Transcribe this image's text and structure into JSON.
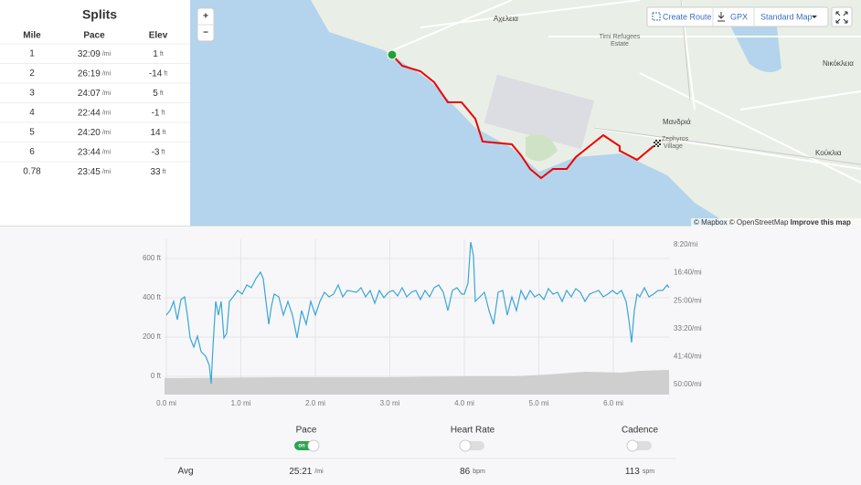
{
  "splits": {
    "title": "Splits",
    "headers": [
      "Mile",
      "Pace",
      "Elev"
    ],
    "rows": [
      [
        "1",
        "32:09",
        "/mi",
        "1",
        "ft"
      ],
      [
        "2",
        "26:19",
        "/mi",
        "-14",
        "ft"
      ],
      [
        "3",
        "24:07",
        "/mi",
        "5",
        "ft"
      ],
      [
        "4",
        "22:44",
        "/mi",
        "-1",
        "ft"
      ],
      [
        "5",
        "24:20",
        "/mi",
        "14",
        "ft"
      ],
      [
        "6",
        "23:44",
        "/mi",
        "-3",
        "ft"
      ],
      [
        "0.78",
        "23:45",
        "/mi",
        "33",
        "ft"
      ]
    ]
  },
  "map": {
    "zoom": [
      "+",
      "−"
    ],
    "buttons": [
      "Create Route",
      "GPX",
      "Standard Map"
    ],
    "places": [
      "Αχελεια",
      "Timi Refugees",
      "Estate",
      "Μανδριά",
      "Zephyros",
      "Village",
      "Νικόκλεια",
      "Κούκλια"
    ],
    "attribution": "© Mapbox © OpenStreetMap",
    "improve": "Improve this map"
  },
  "chart": {
    "left_axis": [
      "600 ft",
      "400 ft",
      "200 ft",
      "0 ft"
    ],
    "right_axis": [
      "8:20/mi",
      "16:40/mi",
      "25:00/mi",
      "33:20/mi",
      "41:40/mi",
      "50:00/mi"
    ],
    "x_axis": [
      "0.0 mi",
      "1.0 mi",
      "2.0 mi",
      "3.0 mi",
      "4.0 mi",
      "5.0 mi",
      "6.0 mi"
    ]
  },
  "toggles": {
    "labels": [
      "Pace",
      "Heart Rate",
      "Cadence"
    ],
    "on": "on"
  },
  "averages": {
    "label": "Avg",
    "values": [
      [
        "25:21",
        "/mi"
      ],
      [
        "86",
        "bpm"
      ],
      [
        "113",
        "spm"
      ]
    ]
  }
}
